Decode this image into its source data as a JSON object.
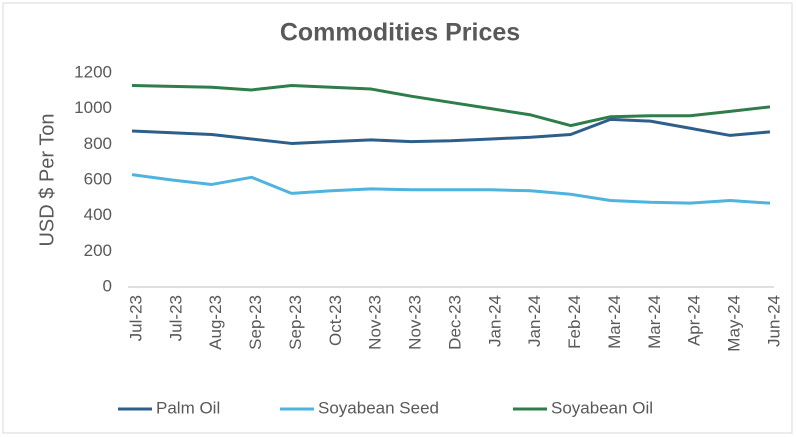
{
  "chart_data": {
    "type": "line",
    "title": "Commodities Prices",
    "y_label": "USD $ Per Ton",
    "categories": [
      "Jul-23",
      "Jul-23",
      "Aug-23",
      "Sep-23",
      "Sep-23",
      "Oct-23",
      "Nov-23",
      "Nov-23",
      "Dec-23",
      "Jan-24",
      "Jan-24",
      "Feb-24",
      "Mar-24",
      "Mar-24",
      "Apr-24",
      "May-24",
      "Jun-24"
    ],
    "series": [
      {
        "name": "Palm Oil",
        "color": "#2e5f8a",
        "values": [
          875,
          865,
          855,
          830,
          805,
          815,
          825,
          815,
          820,
          830,
          840,
          855,
          940,
          930,
          890,
          850,
          870
        ]
      },
      {
        "name": "Soyabean Seed",
        "color": "#4fb3e0",
        "values": [
          630,
          600,
          575,
          615,
          525,
          540,
          550,
          545,
          545,
          545,
          540,
          520,
          485,
          475,
          470,
          485,
          470
        ]
      },
      {
        "name": "Soyabean Oil",
        "color": "#2e7d4a",
        "values": [
          1130,
          1125,
          1120,
          1105,
          1130,
          1120,
          1110,
          1070,
          1035,
          1000,
          965,
          905,
          955,
          960,
          960,
          985,
          1010
        ]
      }
    ],
    "ylim": [
      0,
      1200
    ],
    "yticks": [
      0,
      200,
      400,
      600,
      800,
      1000,
      1200
    ],
    "grid": false,
    "legend": "bottom"
  }
}
